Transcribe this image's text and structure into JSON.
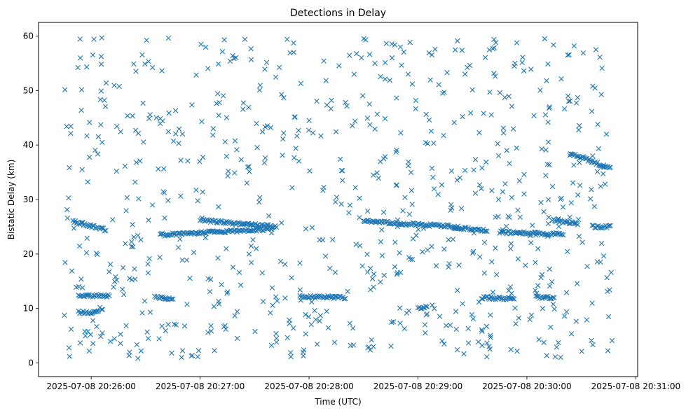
{
  "chart_data": {
    "type": "scatter",
    "title": "Detections in Delay",
    "xlabel": "Time (UTC)",
    "ylabel": "Bistatic Delay (km)",
    "marker": "x",
    "color": "#1f77b4",
    "grid": false,
    "xlim": [
      "2025-07-08 20:25:31",
      "2025-07-08 20:31:01"
    ],
    "ylim": [
      -2.5,
      62.5
    ],
    "x_ticks": [
      "2025-07-08 20:26:00",
      "2025-07-08 20:27:00",
      "2025-07-08 20:28:00",
      "2025-07-08 20:29:00",
      "2025-07-08 20:30:00",
      "2025-07-08 20:31:00"
    ],
    "y_ticks": [
      0,
      10,
      20,
      30,
      40,
      50,
      60
    ],
    "x_range": [
      "2025-07-08 20:25:45",
      "2025-07-08 20:30:47"
    ],
    "tracks": [
      {
        "x": [
          "2025-07-08 20:25:50",
          "2025-07-08 20:26:08"
        ],
        "y": [
          26.0,
          24.4
        ]
      },
      {
        "x": [
          "2025-07-08 20:26:38",
          "2025-07-08 20:27:40"
        ],
        "y": [
          23.5,
          24.6
        ]
      },
      {
        "x": [
          "2025-07-08 20:27:00",
          "2025-07-08 20:27:42"
        ],
        "y": [
          26.2,
          25.0
        ]
      },
      {
        "x": [
          "2025-07-08 20:28:30",
          "2025-07-08 20:29:22"
        ],
        "y": [
          26.0,
          25.0
        ]
      },
      {
        "x": [
          "2025-07-08 20:29:20",
          "2025-07-08 20:29:38"
        ],
        "y": [
          24.8,
          24.3
        ]
      },
      {
        "x": [
          "2025-07-08 20:29:45",
          "2025-07-08 20:30:20"
        ],
        "y": [
          24.0,
          23.6
        ]
      },
      {
        "x": [
          "2025-07-08 20:30:14",
          "2025-07-08 20:30:28"
        ],
        "y": [
          26.2,
          25.6
        ]
      },
      {
        "x": [
          "2025-07-08 20:30:36",
          "2025-07-08 20:30:46"
        ],
        "y": [
          25.0,
          25.0
        ]
      },
      {
        "x": [
          "2025-07-08 20:30:24",
          "2025-07-08 20:30:46"
        ],
        "y": [
          38.5,
          35.7
        ]
      },
      {
        "x": [
          "2025-07-08 20:25:53",
          "2025-07-08 20:26:10"
        ],
        "y": [
          12.4,
          12.3
        ]
      },
      {
        "x": [
          "2025-07-08 20:26:35",
          "2025-07-08 20:26:45"
        ],
        "y": [
          12.2,
          11.6
        ]
      },
      {
        "x": [
          "2025-07-08 20:27:55",
          "2025-07-08 20:28:20"
        ],
        "y": [
          12.2,
          12.0
        ]
      },
      {
        "x": [
          "2025-07-08 20:29:35",
          "2025-07-08 20:29:53"
        ],
        "y": [
          12.0,
          11.7
        ]
      },
      {
        "x": [
          "2025-07-08 20:30:05",
          "2025-07-08 20:30:15"
        ],
        "y": [
          12.1,
          11.9
        ]
      },
      {
        "x": [
          "2025-07-08 20:25:53",
          "2025-07-08 20:26:04"
        ],
        "y": [
          9.3,
          9.3
        ]
      },
      {
        "x": [
          "2025-07-08 20:29:00",
          "2025-07-08 20:29:05"
        ],
        "y": [
          10.2,
          10.2
        ]
      }
    ]
  }
}
